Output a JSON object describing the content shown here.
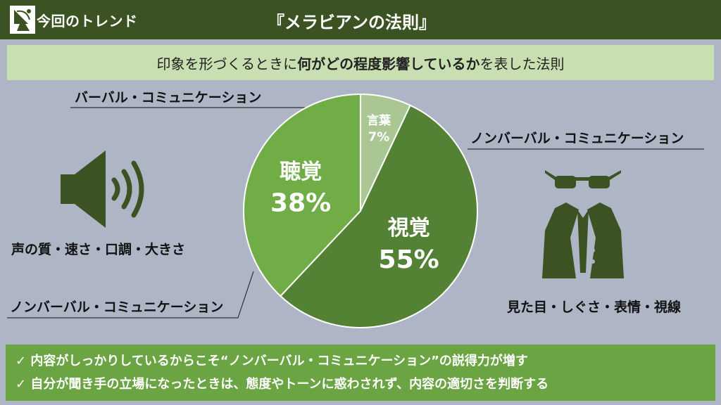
{
  "header": {
    "label": "今回のトレンド",
    "title": "『メラビアンの法則』",
    "icon": "satellite-dish-icon"
  },
  "subtitle": {
    "part1": "印象を形づくるときに",
    "emphasis": "何がどの程度影響しているか",
    "part2": "を表した法則"
  },
  "labels": {
    "verbal": "バーバル・コミュニケーション",
    "nonverbal_right": "ノンバーバル・コミュニケーション",
    "nonverbal_left": "ノンバーバル・コミュニケーション",
    "voice_caption": "声の質・速さ・口調・大きさ",
    "visual_caption": "見た目・しぐさ・表情・視線"
  },
  "chart_data": {
    "type": "pie",
    "slices": [
      {
        "name": "言葉",
        "value": 7,
        "label": "7%",
        "color": "#a9c693"
      },
      {
        "name": "視覚",
        "value": 55,
        "label": "55%",
        "color": "#548235"
      },
      {
        "name": "聴覚",
        "value": 38,
        "label": "38%",
        "color": "#70ad47"
      }
    ]
  },
  "bottom": {
    "line1": "✓ 内容がしっかりしているからこそ“ノンバーバル・コミュニケーション”の説得力が増す",
    "line2": "✓ 自分が聞き手の立場になったときは、態度やトーンに惑わされず、内容の適切さを判断する"
  },
  "colors": {
    "header_bg": "#3b5323",
    "subtitle_bg": "#c8dfb1",
    "background": "#aeb6c6",
    "bottom_bg": "#6aa443",
    "icon_fill": "#3b5323"
  }
}
